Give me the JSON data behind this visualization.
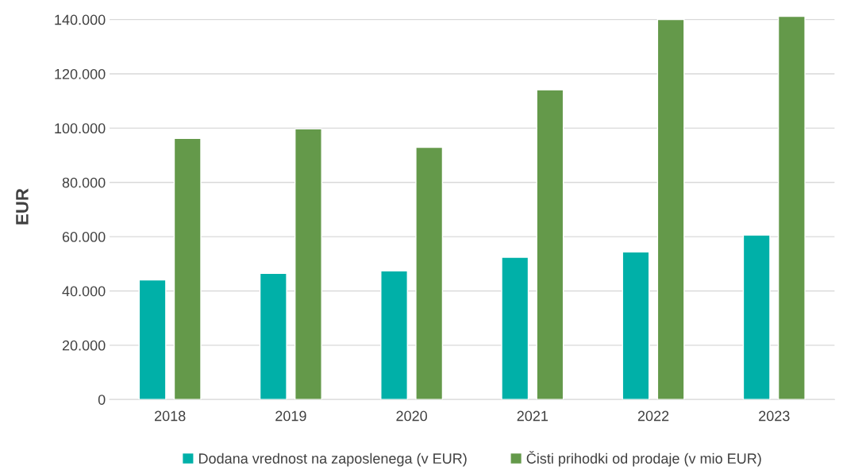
{
  "chart_data": {
    "type": "bar",
    "ylabel": "EUR",
    "categories": [
      "2018",
      "2019",
      "2020",
      "2021",
      "2022",
      "2023"
    ],
    "series": [
      {
        "name": "Dodana vrednost na zaposlenega (v EUR)",
        "color": "#00b0a8",
        "values": [
          44100,
          46500,
          47400,
          52400,
          54400,
          60600
        ]
      },
      {
        "name": "Čisti prihodki od prodaje (v mio EUR)",
        "color": "#64994a",
        "values": [
          96200,
          99700,
          92900,
          114100,
          140000,
          141200
        ]
      }
    ],
    "ylim": [
      0,
      142000
    ],
    "yticks": [
      0,
      {
        "value": 20000,
        "label": "20.000"
      },
      {
        "value": 40000,
        "label": "40.000"
      },
      {
        "value": 60000,
        "label": "60.000"
      },
      {
        "value": 80000,
        "label": "80.000"
      },
      {
        "value": 100000,
        "label": "100.000"
      },
      {
        "value": 120000,
        "label": "120.000"
      },
      {
        "value": 140000,
        "label": "140.000"
      }
    ],
    "grid": "y",
    "legend": "bottom"
  }
}
